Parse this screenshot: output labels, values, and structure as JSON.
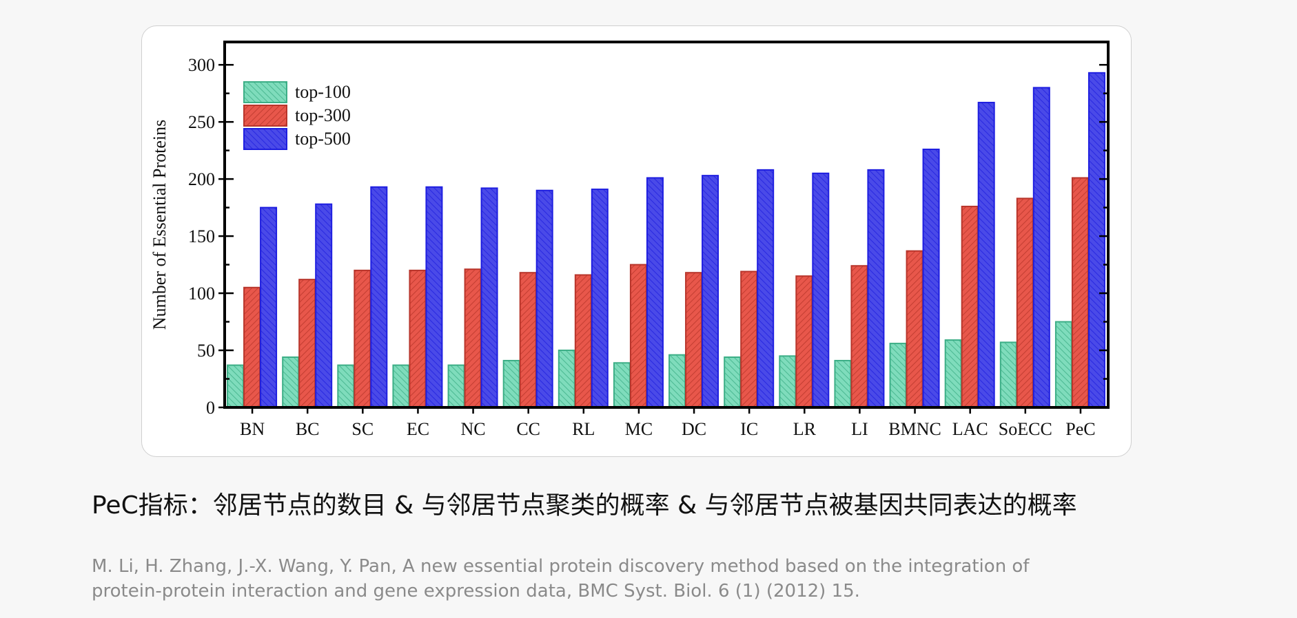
{
  "chart_data": {
    "type": "bar",
    "ylabel": "Number of Essential Proteins",
    "ylim": [
      0,
      320
    ],
    "yticks": [
      0,
      50,
      100,
      150,
      200,
      250,
      300
    ],
    "legend_position": "top-left",
    "categories": [
      "BN",
      "BC",
      "SC",
      "EC",
      "NC",
      "CC",
      "RL",
      "MC",
      "DC",
      "IC",
      "LR",
      "LI",
      "BMNC",
      "LAC",
      "SoECC",
      "PeC"
    ],
    "series": [
      {
        "name": "top-100",
        "color": "#7fdcbc",
        "stroke": "#3cae86",
        "values": [
          37,
          44,
          37,
          37,
          37,
          41,
          50,
          39,
          46,
          44,
          45,
          41,
          56,
          59,
          57,
          75
        ]
      },
      {
        "name": "top-300",
        "color": "#e8574b",
        "stroke": "#b8352b",
        "values": [
          105,
          112,
          120,
          120,
          121,
          118,
          116,
          125,
          118,
          119,
          115,
          124,
          137,
          176,
          183,
          201
        ]
      },
      {
        "name": "top-500",
        "color": "#4a4ae8",
        "stroke": "#1e1ee0",
        "values": [
          175,
          178,
          193,
          193,
          192,
          190,
          191,
          201,
          203,
          208,
          205,
          208,
          226,
          267,
          280,
          293
        ]
      }
    ]
  },
  "caption": "PeC指标：邻居节点的数目 & 与邻居节点聚类的概率 & 与邻居节点被基因共同表达的概率",
  "reference": {
    "line1": "M. Li, H. Zhang, J.-X. Wang, Y. Pan, A new essential protein discovery method based on the integration of",
    "line2": "protein-protein interaction and gene expression data, BMC Syst. Biol. 6 (1) (2012) 15."
  }
}
